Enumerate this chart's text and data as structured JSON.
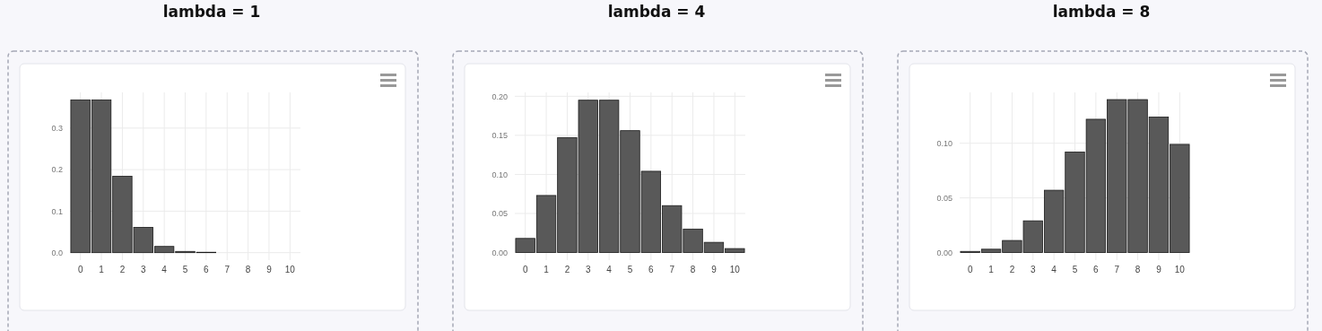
{
  "chart_data": [
    {
      "type": "bar",
      "title": "lambda = 1",
      "categories": [
        "0",
        "1",
        "2",
        "3",
        "4",
        "5",
        "6",
        "7",
        "8",
        "9",
        "10"
      ],
      "values": [
        0.368,
        0.368,
        0.184,
        0.061,
        0.015,
        0.003,
        0.001,
        0,
        0,
        0,
        0
      ],
      "color": "#595959",
      "ylim": [
        -0.018,
        0.386
      ],
      "yticks": [
        {
          "value": 0,
          "label": "0.0"
        },
        {
          "value": 0.1,
          "label": "0.1"
        },
        {
          "value": 0.2,
          "label": "0.2"
        },
        {
          "value": 0.3,
          "label": "0.3"
        }
      ],
      "grid": true
    },
    {
      "type": "bar",
      "title": "lambda = 4",
      "categories": [
        "0",
        "1",
        "2",
        "3",
        "4",
        "5",
        "6",
        "7",
        "8",
        "9",
        "10"
      ],
      "values": [
        0.018,
        0.073,
        0.147,
        0.195,
        0.195,
        0.156,
        0.104,
        0.06,
        0.03,
        0.013,
        0.005
      ],
      "color": "#595959",
      "ylim": [
        -0.0098,
        0.205
      ],
      "yticks": [
        {
          "value": 0,
          "label": "0.00"
        },
        {
          "value": 0.05,
          "label": "0.05"
        },
        {
          "value": 0.1,
          "label": "0.10"
        },
        {
          "value": 0.15,
          "label": "0.15"
        },
        {
          "value": 0.2,
          "label": "0.20"
        }
      ],
      "grid": true
    },
    {
      "type": "bar",
      "title": "lambda = 8",
      "categories": [
        "0",
        "1",
        "2",
        "3",
        "4",
        "5",
        "6",
        "7",
        "8",
        "9",
        "10"
      ],
      "values": [
        0.001,
        0.003,
        0.011,
        0.029,
        0.057,
        0.092,
        0.122,
        0.14,
        0.14,
        0.124,
        0.099
      ],
      "color": "#595959",
      "ylim": [
        -0.007,
        0.1466
      ],
      "yticks": [
        {
          "value": 0,
          "label": "0.00"
        },
        {
          "value": 0.05,
          "label": "0.05"
        },
        {
          "value": 0.1,
          "label": "0.10"
        }
      ],
      "grid": true
    }
  ]
}
